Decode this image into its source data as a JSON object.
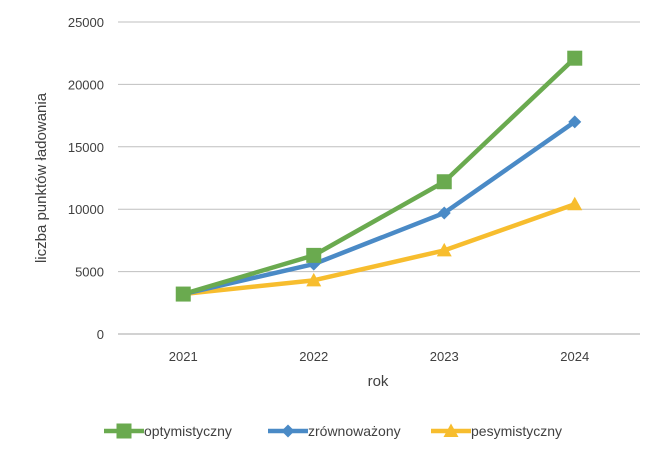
{
  "chart_data": {
    "type": "line",
    "title": "",
    "xlabel": "rok",
    "ylabel": "liczba punktów ładowania",
    "categories": [
      "2021",
      "2022",
      "2023",
      "2024"
    ],
    "ylim": [
      0,
      25000
    ],
    "yticks": [
      0,
      5000,
      10000,
      15000,
      20000,
      25000
    ],
    "ytick_labels": [
      "0",
      "5000",
      "10000",
      "15000",
      "20000",
      "25000"
    ],
    "grid": true,
    "legend_position": "bottom",
    "series": [
      {
        "name": "optymistyczny",
        "values": [
          3200,
          6300,
          12200,
          22100
        ],
        "color": "#6aaa4f",
        "marker": "square"
      },
      {
        "name": "zrównoważony",
        "values": [
          3200,
          5600,
          9700,
          17000
        ],
        "color": "#4a8ac6",
        "marker": "diamond"
      },
      {
        "name": "pesymistyczny",
        "values": [
          3200,
          4300,
          6700,
          10400
        ],
        "color": "#f7bd2e",
        "marker": "triangle"
      }
    ]
  }
}
